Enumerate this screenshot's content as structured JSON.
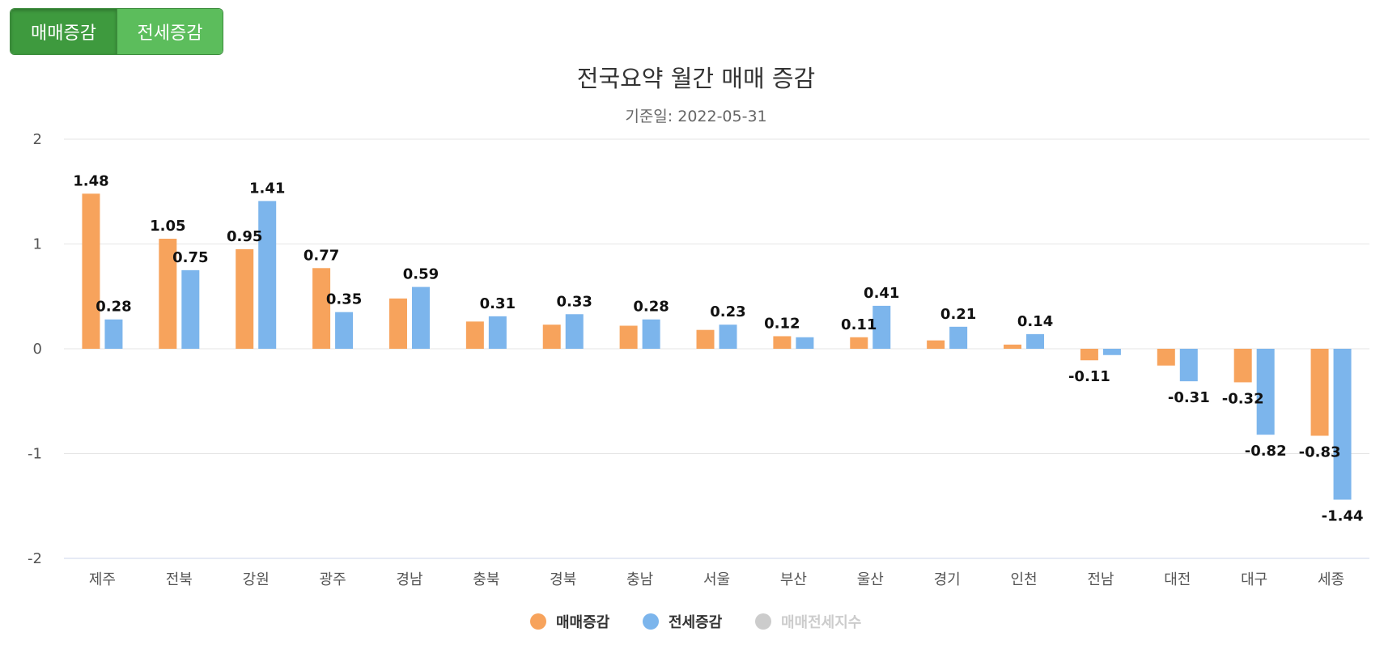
{
  "tabs": [
    {
      "label": "매매증감",
      "active": true
    },
    {
      "label": "전세증감",
      "active": false
    }
  ],
  "chart_data": {
    "type": "bar",
    "title": "전국요약 월간 매매 증감",
    "subtitle": "기준일: 2022-05-31",
    "categories": [
      "제주",
      "전북",
      "강원",
      "광주",
      "경남",
      "충북",
      "경북",
      "충남",
      "서울",
      "부산",
      "울산",
      "경기",
      "인천",
      "전남",
      "대전",
      "대구",
      "세종"
    ],
    "series": [
      {
        "name": "매매증감",
        "color": "#f7a35c",
        "values": [
          1.48,
          1.05,
          0.95,
          0.77,
          0.48,
          0.26,
          0.23,
          0.22,
          0.18,
          0.12,
          0.11,
          0.08,
          0.04,
          -0.11,
          -0.16,
          -0.32,
          -0.83
        ],
        "labels": [
          "1.48",
          "1.05",
          "0.95",
          "0.77",
          "",
          "",
          "",
          "",
          "",
          "0.12",
          "0.11",
          "",
          "",
          "-0.11",
          "",
          "-0.32",
          "-0.83"
        ]
      },
      {
        "name": "전세증감",
        "color": "#7cb5ec",
        "values": [
          0.28,
          0.75,
          1.41,
          0.35,
          0.59,
          0.31,
          0.33,
          0.28,
          0.23,
          0.11,
          0.41,
          0.21,
          0.14,
          -0.06,
          -0.31,
          -0.82,
          -1.44
        ],
        "labels": [
          "0.28",
          "0.75",
          "1.41",
          "0.35",
          "0.59",
          "0.31",
          "0.33",
          "0.28",
          "0.23",
          "",
          "0.41",
          "0.21",
          "0.14",
          "",
          "-0.31",
          "-0.82",
          "-1.44"
        ]
      }
    ],
    "legend": [
      {
        "name": "매매증감",
        "color": "#f7a35c",
        "visible": true
      },
      {
        "name": "전세증감",
        "color": "#7cb5ec",
        "visible": true
      },
      {
        "name": "매매전세지수",
        "color": "#cccccc",
        "visible": false
      }
    ],
    "yticks": [
      "2",
      "1",
      "0",
      "-1",
      "-2"
    ],
    "ylim": [
      -2,
      2
    ],
    "grid": true,
    "legend_position": "bottom-center"
  }
}
